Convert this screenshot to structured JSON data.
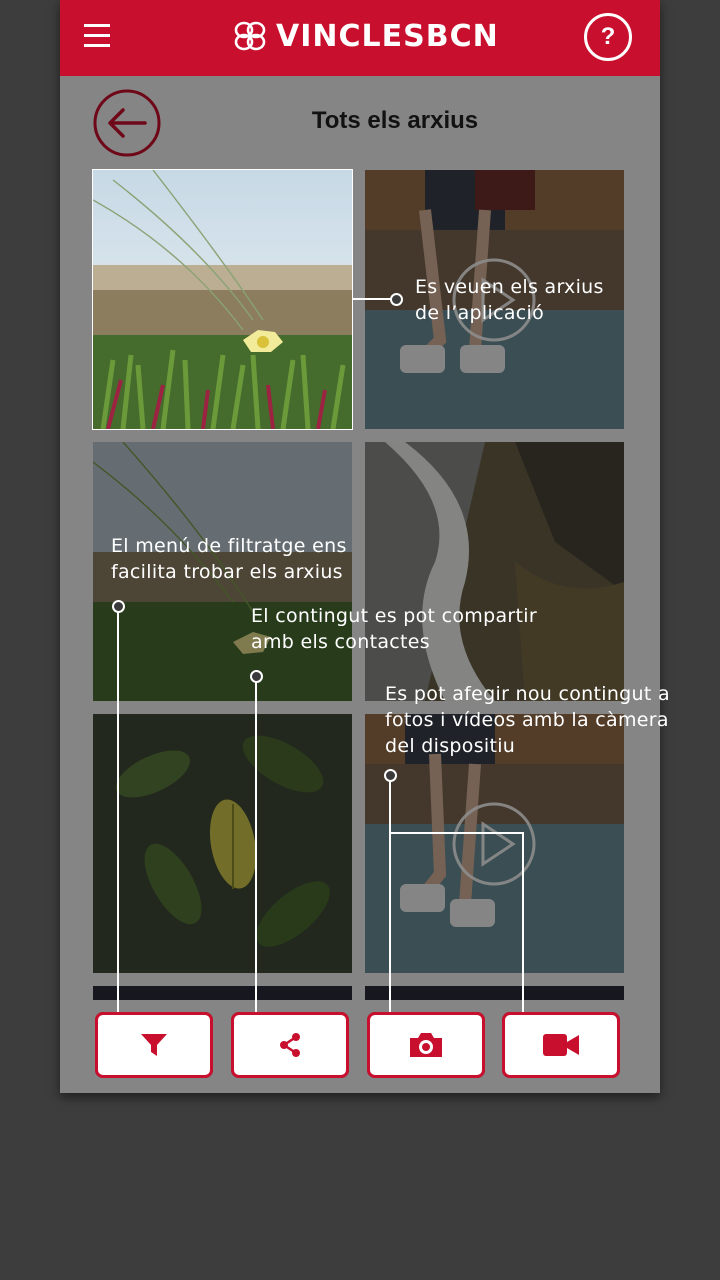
{
  "header": {
    "brand": "VINCLESBCN",
    "help_label": "?",
    "menu_icon": "hamburger-menu-icon",
    "logo_icon": "vincles-logo-icon"
  },
  "page": {
    "title": "Tots els arxius",
    "back_icon": "back-arrow-icon"
  },
  "gallery": {
    "items": [
      {
        "type": "photo",
        "subject": "flower"
      },
      {
        "type": "video",
        "subject": "runner"
      },
      {
        "type": "photo",
        "subject": "flower"
      },
      {
        "type": "photo",
        "subject": "waterfall"
      },
      {
        "type": "photo",
        "subject": "leaves"
      },
      {
        "type": "video",
        "subject": "runner"
      }
    ]
  },
  "toolbar": {
    "buttons": [
      {
        "name": "filter",
        "icon": "filter-icon"
      },
      {
        "name": "share",
        "icon": "share-icon"
      },
      {
        "name": "camera",
        "icon": "camera-icon"
      },
      {
        "name": "video",
        "icon": "video-camera-icon"
      }
    ]
  },
  "annotations": {
    "files_1": "Es veuen els arxius",
    "files_2": "de l’aplicació",
    "filter_1": "El menú de filtratge ens",
    "filter_2": "facilita trobar els arxius",
    "share_1": "El contingut es pot compartir",
    "share_2": "amb els contactes",
    "camera_1": "Es pot afegir nou contingut a",
    "camera_2": "fotos i vídeos amb la càmera",
    "camera_3": "del dispositiu"
  },
  "colors": {
    "brand_red": "#c8102e",
    "overlay": "rgba(0,0,0,0.45)",
    "background": "#f2f2f2"
  }
}
